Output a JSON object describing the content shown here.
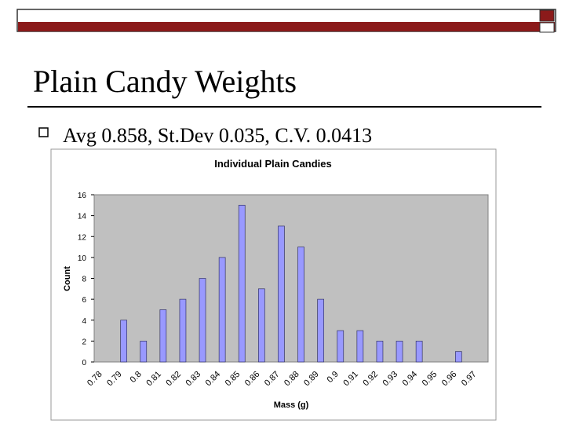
{
  "slide": {
    "title": "Plain Candy Weights",
    "bullet": "Avg 0.858, St.Dev 0.035, C.V. 0.0413"
  },
  "chart_data": {
    "type": "bar",
    "title": "Individual Plain Candies",
    "x_label": "Mass (g)",
    "y_label": "Count",
    "categories": [
      "0.78",
      "0.79",
      "0.8",
      "0.81",
      "0.82",
      "0.83",
      "0.84",
      "0.85",
      "0.86",
      "0.87",
      "0.88",
      "0.89",
      "0.9",
      "0.91",
      "0.92",
      "0.93",
      "0.94",
      "0.95",
      "0.96",
      "0.97"
    ],
    "values": [
      0,
      4,
      2,
      5,
      6,
      8,
      10,
      15,
      7,
      13,
      11,
      6,
      3,
      3,
      2,
      2,
      2,
      0,
      1,
      0
    ],
    "color": "#9999ff",
    "background": "#c0c0c0",
    "ylim": [
      0,
      16
    ],
    "yticks": [
      0,
      2,
      4,
      6,
      8,
      10,
      12,
      14,
      16
    ],
    "grid": false
  }
}
